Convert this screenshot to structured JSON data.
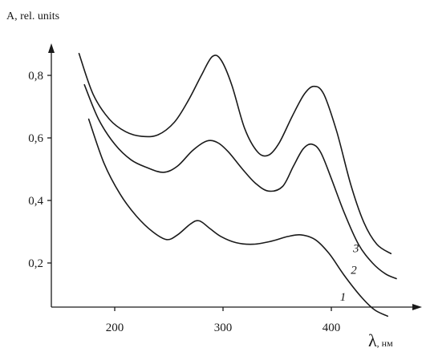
{
  "chart_data": {
    "type": "line",
    "title": "",
    "ylabel": "A, rel. units",
    "xlabel_symbol": "λ",
    "xlabel_unit": ", нм",
    "xlim": [
      150,
      460
    ],
    "ylim": [
      0,
      0.95
    ],
    "xticks": [
      200,
      300,
      400
    ],
    "xtick_labels": [
      "200",
      "300",
      "400"
    ],
    "yticks": [
      0.2,
      0.4,
      0.6,
      0.8
    ],
    "ytick_labels": [
      "0,2",
      "0,4",
      "0,6",
      "0,8"
    ],
    "grid": false,
    "series": [
      {
        "name": "1",
        "points": [
          [
            176,
            0.66
          ],
          [
            190,
            0.52
          ],
          [
            205,
            0.42
          ],
          [
            220,
            0.35
          ],
          [
            235,
            0.3
          ],
          [
            248,
            0.275
          ],
          [
            258,
            0.29
          ],
          [
            270,
            0.325
          ],
          [
            278,
            0.335
          ],
          [
            288,
            0.31
          ],
          [
            298,
            0.285
          ],
          [
            312,
            0.265
          ],
          [
            328,
            0.26
          ],
          [
            345,
            0.27
          ],
          [
            360,
            0.285
          ],
          [
            372,
            0.29
          ],
          [
            385,
            0.275
          ],
          [
            398,
            0.23
          ],
          [
            412,
            0.16
          ],
          [
            428,
            0.09
          ],
          [
            440,
            0.05
          ],
          [
            452,
            0.03
          ]
        ],
        "label_at": [
          408,
          0.08
        ]
      },
      {
        "name": "2",
        "points": [
          [
            172,
            0.77
          ],
          [
            185,
            0.66
          ],
          [
            200,
            0.58
          ],
          [
            215,
            0.53
          ],
          [
            230,
            0.505
          ],
          [
            245,
            0.49
          ],
          [
            258,
            0.51
          ],
          [
            272,
            0.56
          ],
          [
            285,
            0.59
          ],
          [
            295,
            0.585
          ],
          [
            305,
            0.555
          ],
          [
            318,
            0.5
          ],
          [
            330,
            0.455
          ],
          [
            342,
            0.43
          ],
          [
            355,
            0.445
          ],
          [
            365,
            0.51
          ],
          [
            374,
            0.565
          ],
          [
            382,
            0.58
          ],
          [
            390,
            0.555
          ],
          [
            400,
            0.47
          ],
          [
            412,
            0.36
          ],
          [
            425,
            0.26
          ],
          [
            438,
            0.2
          ],
          [
            450,
            0.165
          ],
          [
            460,
            0.15
          ]
        ],
        "label_at": [
          418,
          0.165
        ]
      },
      {
        "name": "3",
        "points": [
          [
            167,
            0.87
          ],
          [
            180,
            0.74
          ],
          [
            195,
            0.66
          ],
          [
            210,
            0.62
          ],
          [
            225,
            0.605
          ],
          [
            240,
            0.61
          ],
          [
            255,
            0.65
          ],
          [
            268,
            0.72
          ],
          [
            280,
            0.8
          ],
          [
            290,
            0.86
          ],
          [
            298,
            0.85
          ],
          [
            308,
            0.77
          ],
          [
            320,
            0.63
          ],
          [
            332,
            0.555
          ],
          [
            342,
            0.545
          ],
          [
            352,
            0.585
          ],
          [
            364,
            0.67
          ],
          [
            375,
            0.74
          ],
          [
            384,
            0.765
          ],
          [
            393,
            0.74
          ],
          [
            405,
            0.62
          ],
          [
            418,
            0.45
          ],
          [
            430,
            0.33
          ],
          [
            442,
            0.26
          ],
          [
            455,
            0.23
          ]
        ],
        "label_at": [
          420,
          0.235
        ]
      }
    ]
  }
}
